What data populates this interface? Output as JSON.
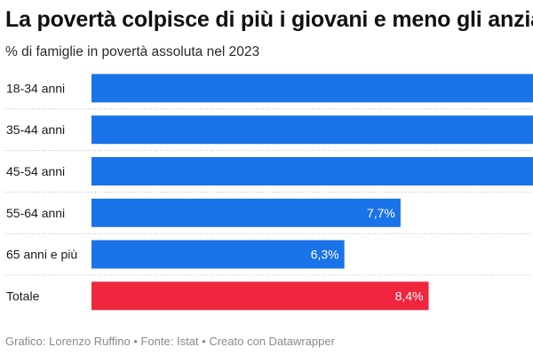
{
  "title": "La povertà colpisce di più i giovani e meno gli anziani",
  "subtitle": "% di famiglie in povertà assoluta nel 2023",
  "footer": {
    "credit": "Grafico: Lorenzo Ruffino",
    "source": "Fonte: Istat",
    "tool": "Creato con Datawrapper",
    "separator": "•"
  },
  "colors": {
    "bar": "#1a73e8",
    "highlight": "#f0253e",
    "label": "#ffffff",
    "category_text": "#1a1a1a",
    "divider": "#c8c8c8"
  },
  "chart_data": {
    "type": "bar",
    "orientation": "horizontal",
    "title": "La povertà colpisce di più i giovani e meno gli anziani",
    "subtitle": "% di famiglie in povertà assoluta nel 2023",
    "categories": [
      "18-34 anni",
      "35-44 anni",
      "45-54 anni",
      "55-64 anni",
      "65 anni e più",
      "Totale"
    ],
    "values": [
      11.0,
      11.0,
      11.0,
      7.7,
      6.3,
      8.4
    ],
    "labels": [
      "",
      "",
      "",
      "7,7%",
      "6,3%",
      "8,4%"
    ],
    "highlight": [
      false,
      false,
      false,
      false,
      false,
      true
    ],
    "xlim": [
      0,
      11.0
    ],
    "unit": "%",
    "grid": false
  }
}
